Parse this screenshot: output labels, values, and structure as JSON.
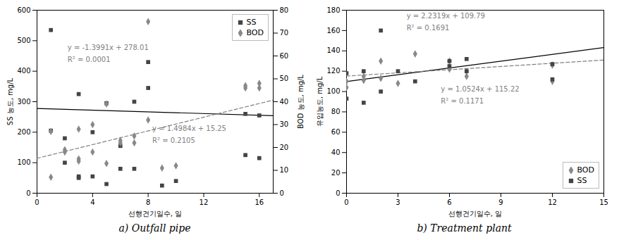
{
  "chart_data": [
    {
      "type": "scatter",
      "caption": "a)  Outfall  pipe",
      "xlabel": "선행건기일수, 일",
      "ylabel": "SS 농도, mg/L",
      "y2label": "BOD 농도, mg/L",
      "xlim": [
        0,
        17
      ],
      "xticks": [
        0,
        4,
        8,
        12,
        16
      ],
      "ylim": [
        0,
        600
      ],
      "yticks": [
        0,
        100,
        200,
        300,
        400,
        500,
        600
      ],
      "y2lim": [
        0,
        80
      ],
      "y2ticks": [
        0,
        10,
        20,
        30,
        40,
        50,
        60,
        70,
        80
      ],
      "legend": "upper right",
      "series": [
        {
          "name": "SS",
          "type": "scatter",
          "marker": "square",
          "color": "#444444",
          "x": [
            1,
            1,
            2,
            2,
            3,
            3,
            3,
            4,
            4,
            5,
            5,
            6,
            6,
            7,
            7,
            8,
            8,
            9,
            10,
            15,
            15,
            16,
            16
          ],
          "values": [
            535,
            205,
            180,
            100,
            325,
            55,
            50,
            200,
            55,
            295,
            30,
            80,
            155,
            300,
            80,
            430,
            345,
            25,
            40,
            125,
            260,
            115,
            255
          ]
        },
        {
          "name": "BOD",
          "type": "scatter",
          "marker": "diamond",
          "color": "#888888",
          "axis": "y2",
          "x": [
            1,
            1,
            2,
            2,
            3,
            3,
            3,
            4,
            4,
            5,
            5,
            6,
            6,
            7,
            7,
            8,
            8,
            9,
            10,
            15,
            15,
            16,
            16
          ],
          "values": [
            7,
            27,
            19,
            18,
            28,
            15,
            14,
            30,
            18,
            39,
            13,
            22,
            23,
            25,
            22,
            75,
            32,
            11,
            12,
            47,
            46,
            48,
            46
          ]
        },
        {
          "type": "line",
          "line_style": "solid",
          "color": "black",
          "x": [
            0,
            17
          ],
          "values": [
            278.01,
            254.2253
          ]
        },
        {
          "type": "line",
          "line_style": "dashed",
          "color": "gray",
          "axis": "y2",
          "x": [
            0,
            17
          ],
          "values": [
            15.25,
            40.7228
          ]
        }
      ],
      "annotations": [
        {
          "text": "y = -1.3991x + 278.01",
          "x": 2.2,
          "y": 470
        },
        {
          "text": "R² = 0.0001",
          "x": 2.2,
          "y": 430
        },
        {
          "text": "y = 1.4984x + 15.25",
          "x": 8.3,
          "y": 205
        },
        {
          "text": "R² = 0.2105",
          "x": 8.3,
          "y": 165
        }
      ]
    },
    {
      "type": "scatter",
      "caption": "b)  Treatment  plant",
      "xlabel": "선행건기일수, 일",
      "ylabel": "유입농도, mg/L",
      "xlim": [
        0,
        15
      ],
      "xticks": [
        0,
        3,
        6,
        9,
        12,
        15
      ],
      "ylim": [
        0,
        180
      ],
      "yticks": [
        0,
        20,
        40,
        60,
        80,
        100,
        120,
        140,
        160,
        180
      ],
      "legend": "lower right",
      "series": [
        {
          "name": "BOD",
          "type": "scatter",
          "marker": "diamond",
          "color": "#888888",
          "x": [
            0,
            0,
            1,
            1,
            2,
            2,
            3,
            4,
            6,
            6,
            7,
            7,
            12,
            12
          ],
          "values": [
            104,
            110,
            111,
            115,
            130,
            113,
            108,
            137,
            130,
            122,
            120,
            115,
            110,
            126
          ]
        },
        {
          "name": "SS",
          "type": "scatter",
          "marker": "square",
          "color": "#444444",
          "x": [
            0,
            0,
            1,
            1,
            2,
            2,
            3,
            4,
            6,
            6,
            7,
            7,
            12,
            12
          ],
          "values": [
            93,
            118,
            89,
            120,
            100,
            160,
            120,
            110,
            125,
            130,
            132,
            120,
            112,
            127
          ]
        },
        {
          "type": "line",
          "line_style": "solid",
          "color": "black",
          "x": [
            0,
            15
          ],
          "values": [
            109.79,
            143.2685
          ]
        },
        {
          "type": "line",
          "line_style": "dashed",
          "color": "gray",
          "x": [
            0,
            15
          ],
          "values": [
            115.22,
            131.006
          ]
        }
      ],
      "annotations": [
        {
          "text": "y = 2.2319x + 109.79",
          "x": 3.5,
          "y": 172
        },
        {
          "text": "R² = 0.1691",
          "x": 3.5,
          "y": 160
        },
        {
          "text": "y = 1.0524x + 115.22",
          "x": 5.5,
          "y": 100
        },
        {
          "text": "R² = 0.1171",
          "x": 5.5,
          "y": 88
        }
      ]
    }
  ]
}
